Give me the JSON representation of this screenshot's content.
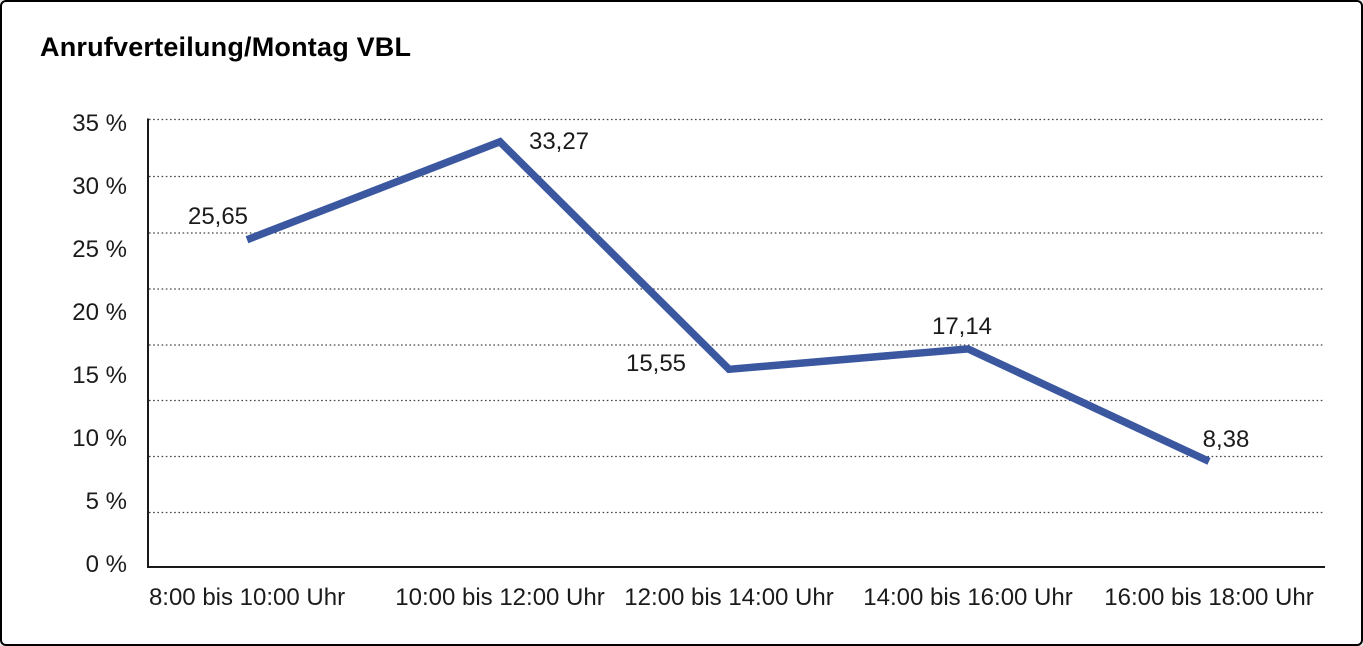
{
  "title": "Anrufverteilung/Montag VBL",
  "chart_data": {
    "type": "line",
    "title": "Anrufverteilung/Montag VBL",
    "categories": [
      "8:00 bis 10:00 Uhr",
      "10:00 bis 12:00 Uhr",
      "12:00 bis 14:00 Uhr",
      "14:00 bis 16:00 Uhr",
      "16:00 bis 18:00 Uhr"
    ],
    "values": [
      25.65,
      33.27,
      15.55,
      17.14,
      8.38
    ],
    "value_labels": [
      "25,65",
      "33,27",
      "15,55",
      "17,14",
      "8,38"
    ],
    "y_tick_labels": [
      "35 %",
      "30 %",
      "25 %",
      "20 %",
      "15 %",
      "10 %",
      "5 %",
      "0 %"
    ],
    "ylim": [
      0,
      35
    ],
    "y_unit": "%",
    "decimal_separator": ",",
    "xlabel": "",
    "ylabel": "",
    "legend": "none",
    "grid": "horizontal-dotted",
    "colors": {
      "line": "#3A57A0",
      "gridline": "#444444",
      "axis": "#1a1a1a",
      "text": "#1b1b1b",
      "title": "#000000",
      "background": "#ffffff",
      "frame_border": "#000000"
    }
  }
}
